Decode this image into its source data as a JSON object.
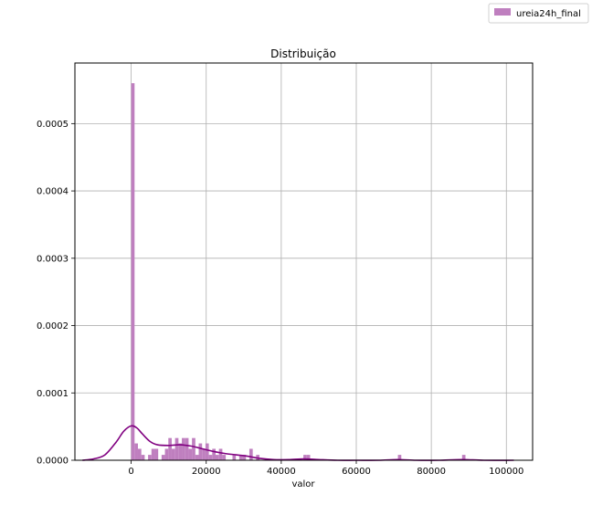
{
  "chart_data": {
    "type": "bar",
    "title": "Distribuição",
    "xlabel": "valor",
    "ylabel": "",
    "xlim": [
      -15000,
      107000
    ],
    "ylim": [
      0,
      0.00059
    ],
    "grid": true,
    "legend": {
      "position": "top-right",
      "entries": [
        "ureia24h_final"
      ]
    },
    "colors": {
      "hist": "#bf7fbf",
      "kde": "#800080",
      "grid": "#b0b0b0"
    },
    "x_ticks": [
      0,
      20000,
      40000,
      60000,
      80000,
      100000
    ],
    "x_tick_labels": [
      "0",
      "20000",
      "40000",
      "60000",
      "80000",
      "100000"
    ],
    "y_ticks": [
      0,
      0.0001,
      0.0002,
      0.0003,
      0.0004,
      0.0005
    ],
    "y_tick_labels": [
      "0.0000",
      "0.0001",
      "0.0002",
      "0.0003",
      "0.0004",
      "0.0005"
    ],
    "series": [
      {
        "name": "ureia24h_final",
        "kind": "histogram",
        "bin_width": 900,
        "bins": [
          {
            "x": 0,
            "y": 0.00056
          },
          {
            "x": 900,
            "y": 2.5e-05
          },
          {
            "x": 1800,
            "y": 1.7e-05
          },
          {
            "x": 2700,
            "y": 8e-06
          },
          {
            "x": 4500,
            "y": 8e-06
          },
          {
            "x": 5400,
            "y": 1.7e-05
          },
          {
            "x": 6300,
            "y": 1.7e-05
          },
          {
            "x": 8100,
            "y": 8e-06
          },
          {
            "x": 9000,
            "y": 1.7e-05
          },
          {
            "x": 9900,
            "y": 3.3e-05
          },
          {
            "x": 10800,
            "y": 1.7e-05
          },
          {
            "x": 11700,
            "y": 3.3e-05
          },
          {
            "x": 12600,
            "y": 2.5e-05
          },
          {
            "x": 13500,
            "y": 3.3e-05
          },
          {
            "x": 14400,
            "y": 3.3e-05
          },
          {
            "x": 15300,
            "y": 1.7e-05
          },
          {
            "x": 16200,
            "y": 3.3e-05
          },
          {
            "x": 17100,
            "y": 8e-06
          },
          {
            "x": 18000,
            "y": 2.5e-05
          },
          {
            "x": 18900,
            "y": 1.7e-05
          },
          {
            "x": 19800,
            "y": 2.5e-05
          },
          {
            "x": 20700,
            "y": 8e-06
          },
          {
            "x": 21600,
            "y": 1.7e-05
          },
          {
            "x": 22500,
            "y": 8e-06
          },
          {
            "x": 23400,
            "y": 1.7e-05
          },
          {
            "x": 24300,
            "y": 8e-06
          },
          {
            "x": 27000,
            "y": 8e-06
          },
          {
            "x": 28800,
            "y": 8e-06
          },
          {
            "x": 29700,
            "y": 8e-06
          },
          {
            "x": 31500,
            "y": 1.7e-05
          },
          {
            "x": 33300,
            "y": 8e-06
          },
          {
            "x": 45900,
            "y": 8e-06
          },
          {
            "x": 46800,
            "y": 8e-06
          },
          {
            "x": 71100,
            "y": 8e-06
          },
          {
            "x": 88200,
            "y": 8e-06
          }
        ]
      },
      {
        "name": "kde",
        "kind": "line",
        "points": [
          [
            -13000,
            0.0
          ],
          [
            -10000,
            2e-06
          ],
          [
            -7000,
            8e-06
          ],
          [
            -4000,
            2.7e-05
          ],
          [
            -2000,
            4.3e-05
          ],
          [
            0,
            5.1e-05
          ],
          [
            1500,
            4.8e-05
          ],
          [
            3000,
            3.9e-05
          ],
          [
            5000,
            2.8e-05
          ],
          [
            7000,
            2.3e-05
          ],
          [
            10000,
            2.2e-05
          ],
          [
            13000,
            2.3e-05
          ],
          [
            16000,
            2.1e-05
          ],
          [
            19000,
            1.7e-05
          ],
          [
            22000,
            1.3e-05
          ],
          [
            25000,
            1e-05
          ],
          [
            28000,
            8e-06
          ],
          [
            31000,
            6e-06
          ],
          [
            34000,
            3e-06
          ],
          [
            38000,
            1e-06
          ],
          [
            42000,
            1e-06
          ],
          [
            46000,
            2e-06
          ],
          [
            50000,
            1e-06
          ],
          [
            55000,
            0.0
          ],
          [
            60000,
            0.0
          ],
          [
            66000,
            0.0
          ],
          [
            71000,
            1e-06
          ],
          [
            76000,
            0.0
          ],
          [
            82000,
            0.0
          ],
          [
            88000,
            1e-06
          ],
          [
            94000,
            0.0
          ],
          [
            102000,
            0.0
          ]
        ]
      }
    ]
  }
}
